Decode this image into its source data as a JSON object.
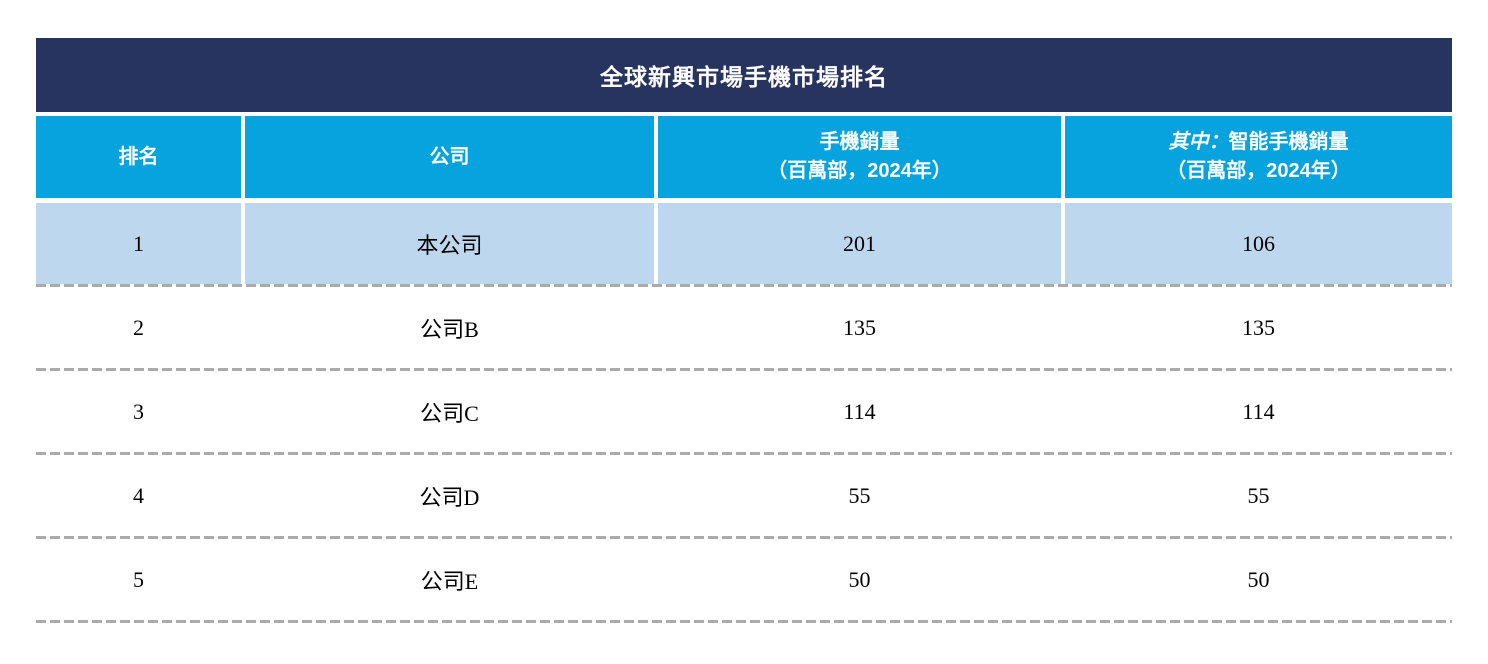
{
  "table": {
    "title": "全球新興市場手機市場排名",
    "header": {
      "rank": "排名",
      "company": "公司",
      "phone_sales_line1": "手機銷量",
      "phone_sales_line2": "（百萬部，2024年）",
      "smartphone_prefix": "其中：",
      "smartphone_line1": "智能手機銷量",
      "smartphone_line2": "（百萬部，2024年）"
    },
    "rows": [
      {
        "rank": "1",
        "company": "本公司",
        "phone_sales": "201",
        "smartphone_sales": "106"
      },
      {
        "rank": "2",
        "company": "公司B",
        "phone_sales": "135",
        "smartphone_sales": "135"
      },
      {
        "rank": "3",
        "company": "公司C",
        "phone_sales": "114",
        "smartphone_sales": "114"
      },
      {
        "rank": "4",
        "company": "公司D",
        "phone_sales": "55",
        "smartphone_sales": "55"
      },
      {
        "rank": "5",
        "company": "公司E",
        "phone_sales": "50",
        "smartphone_sales": "50"
      }
    ],
    "colors": {
      "title_bg": "#283460",
      "header_bg": "#06A3DF",
      "highlight_row_bg": "#BDD7EE",
      "title_text": "#FFFFFF",
      "header_text": "#FFFFFF",
      "body_text": "#000000",
      "dash_separator": "#ABABAB"
    }
  }
}
